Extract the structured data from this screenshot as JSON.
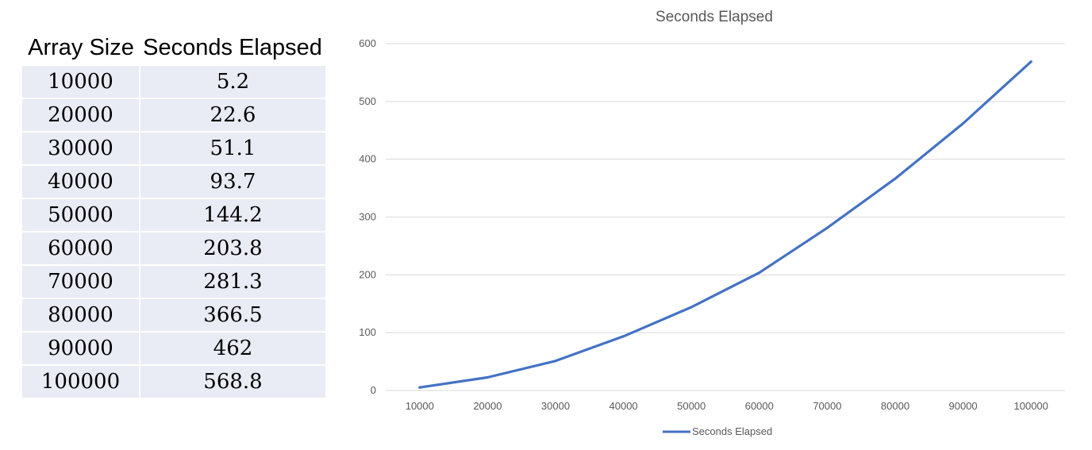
{
  "table": {
    "headers": [
      "Array Size",
      "Seconds Elapsed"
    ],
    "rows": [
      [
        "10000",
        "5.2"
      ],
      [
        "20000",
        "22.6"
      ],
      [
        "30000",
        "51.1"
      ],
      [
        "40000",
        "93.7"
      ],
      [
        "50000",
        "144.2"
      ],
      [
        "60000",
        "203.8"
      ],
      [
        "70000",
        "281.3"
      ],
      [
        "80000",
        "366.5"
      ],
      [
        "90000",
        "462"
      ],
      [
        "100000",
        "568.8"
      ]
    ]
  },
  "chart_data": {
    "type": "line",
    "title": "Seconds Elapsed",
    "categories": [
      "10000",
      "20000",
      "30000",
      "40000",
      "50000",
      "60000",
      "70000",
      "80000",
      "90000",
      "100000"
    ],
    "series": [
      {
        "name": "Seconds Elapsed",
        "values": [
          5.2,
          22.6,
          51.1,
          93.7,
          144.2,
          203.8,
          281.3,
          366.5,
          462,
          568.8
        ],
        "color": "#4472c4"
      }
    ],
    "y_ticks": [
      0,
      100,
      200,
      300,
      400,
      500,
      600
    ],
    "ylim": [
      0,
      600
    ],
    "grid": true,
    "legend_position": "bottom",
    "colors": {
      "grid": "#d9d9d9",
      "tick_text": "#595959",
      "title": "#595959"
    }
  }
}
